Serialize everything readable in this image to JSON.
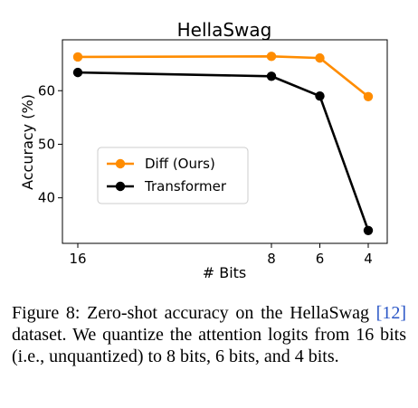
{
  "chart_data": {
    "type": "line",
    "title": "HellaSwag",
    "xlabel": "# Bits",
    "ylabel": "Accuracy (%)",
    "x": [
      16,
      8,
      6,
      4
    ],
    "x_tick_labels": [
      "16",
      "8",
      "6",
      "4"
    ],
    "y_ticks": [
      40,
      50,
      60
    ],
    "y_tick_labels": [
      "40",
      "50",
      "60"
    ],
    "ylim": [
      31.5,
      69.5
    ],
    "series": [
      {
        "name": "Diff (Ours)",
        "values": [
          66.3,
          66.4,
          66.1,
          58.9
        ],
        "color": "#ff8c00"
      },
      {
        "name": "Transformer",
        "values": [
          63.4,
          62.7,
          59.0,
          33.9
        ],
        "color": "#000000"
      }
    ],
    "legend_position": "center-left",
    "grid": false
  },
  "caption": {
    "prefix": "Figure 8:  Zero-shot accuracy on the HellaSwag ",
    "citation": "[12]",
    "suffix": " dataset. We quantize the attention logits from 16 bits (i.e., unquantized) to 8 bits, 6 bits, and 4 bits."
  }
}
